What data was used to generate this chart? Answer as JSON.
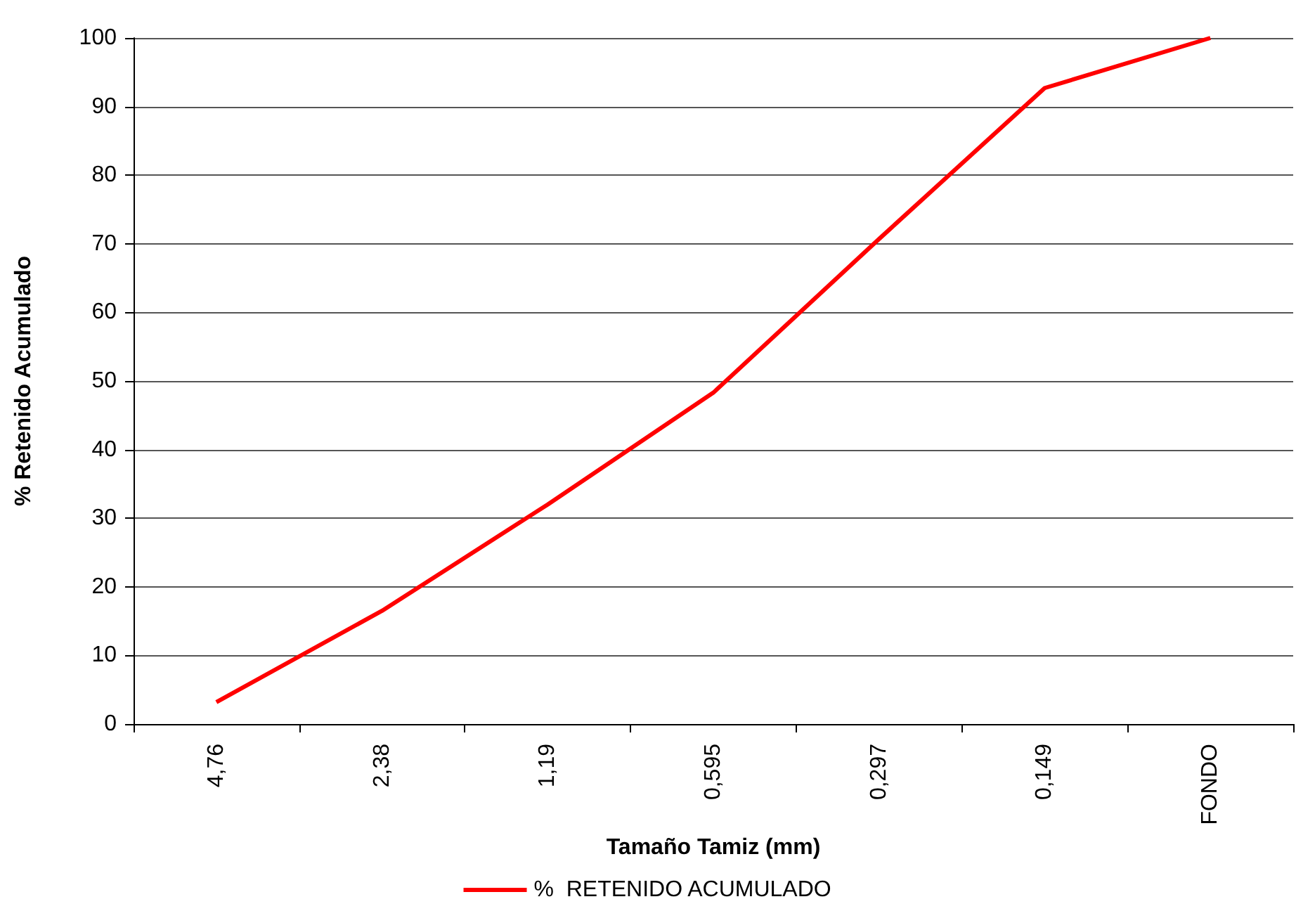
{
  "chart_data": {
    "type": "line",
    "xlabel": "Tamaño Tamiz (mm)",
    "ylabel": "% Retenido Acumulado",
    "categories": [
      "4,76",
      "2,38",
      "1,19",
      "0,595",
      "0,297",
      "0,149",
      "FONDO"
    ],
    "series": [
      {
        "name": "%  RETENIDO ACUMULADO",
        "color": "#ff0000",
        "values": [
          3.2,
          16.5,
          32,
          48.3,
          70.7,
          92.7,
          100
        ]
      }
    ],
    "ylim": [
      0,
      100
    ],
    "yticks": [
      0,
      10,
      20,
      30,
      40,
      50,
      60,
      70,
      80,
      90,
      100
    ],
    "grid": "y",
    "legend": "bottom",
    "marker": "none",
    "line_style": "solid"
  }
}
